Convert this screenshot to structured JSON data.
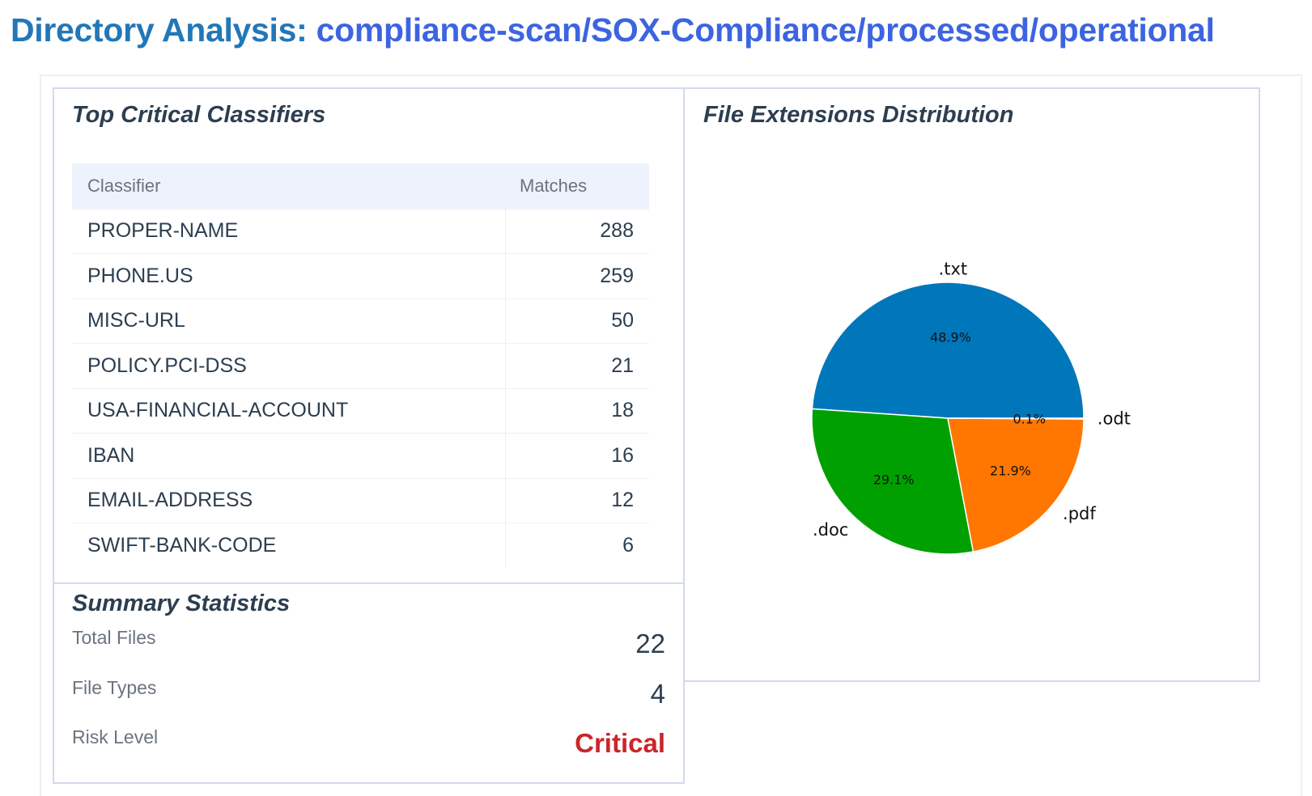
{
  "header": {
    "label": "Directory Analysis:",
    "path": "compliance-scan/SOX-Compliance/processed/operational"
  },
  "classifiers": {
    "title": "Top Critical Classifiers",
    "columns": [
      "Classifier",
      "Matches"
    ],
    "rows": [
      {
        "name": "PROPER-NAME",
        "matches": "288"
      },
      {
        "name": "PHONE.US",
        "matches": "259"
      },
      {
        "name": "MISC-URL",
        "matches": "50"
      },
      {
        "name": "POLICY.PCI-DSS",
        "matches": "21"
      },
      {
        "name": "USA-FINANCIAL-ACCOUNT",
        "matches": "18"
      },
      {
        "name": "IBAN",
        "matches": "16"
      },
      {
        "name": "EMAIL-ADDRESS",
        "matches": "12"
      },
      {
        "name": "SWIFT-BANK-CODE",
        "matches": "6"
      }
    ]
  },
  "summary": {
    "title": "Summary Statistics",
    "items": [
      {
        "label": "Total Files",
        "value": "22"
      },
      {
        "label": "File Types",
        "value": "4"
      },
      {
        "label": "Risk Level",
        "value": "Critical"
      }
    ],
    "risk_color": "#c9262b"
  },
  "chart_panel": {
    "title": "File Extensions Distribution"
  },
  "chart_data": {
    "type": "pie",
    "categories": [
      ".txt",
      ".doc",
      ".pdf",
      ".odt"
    ],
    "values": [
      48.9,
      29.1,
      21.9,
      0.1
    ],
    "labels": [
      "48.9%",
      "29.1%",
      "21.9%",
      "0.1%"
    ],
    "colors": [
      "#0077bb",
      "#00a000",
      "#ff7700",
      "#e8e8e8"
    ],
    "start_angle_deg": 0,
    "direction": "counterclockwise"
  }
}
